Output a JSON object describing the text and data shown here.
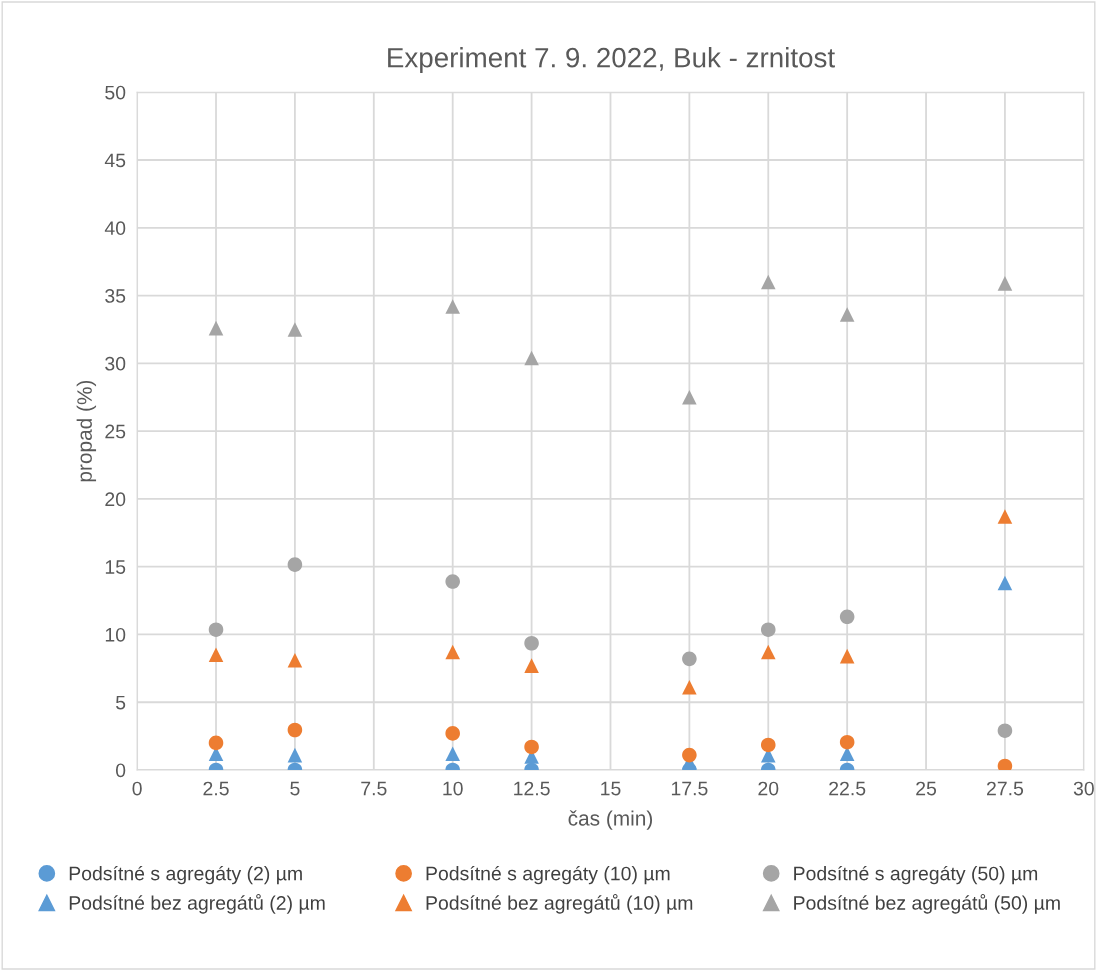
{
  "chart_data": {
    "type": "scatter",
    "title": "Experiment 7. 9. 2022, Buk - zrnitost",
    "xlabel": "čas (min)",
    "ylabel": "propad (%)",
    "x": [
      2.5,
      5,
      10,
      12.5,
      17.5,
      20,
      22.5,
      27.5
    ],
    "series": [
      {
        "name": "Podsítné s agregáty (2) µm",
        "color": "#5b9bd5",
        "marker": "circle",
        "values": [
          0,
          0,
          0,
          0,
          0,
          0,
          0,
          null
        ]
      },
      {
        "name": "Podsítné bez agregátů (2) µm",
        "color": "#5b9bd5",
        "marker": "triangle",
        "values": [
          1.2,
          1.1,
          1.2,
          1.0,
          0.6,
          1.1,
          1.2,
          13.8
        ]
      },
      {
        "name": "Podsítné s agregáty (10) µm",
        "color": "#ed7d31",
        "marker": "circle",
        "values": [
          2.0,
          2.95,
          2.7,
          1.7,
          1.1,
          1.85,
          2.05,
          0.3
        ]
      },
      {
        "name": "Podsítné bez agregátů (10) µm",
        "color": "#ed7d31",
        "marker": "triangle",
        "values": [
          8.5,
          8.1,
          8.7,
          7.7,
          6.1,
          8.7,
          8.4,
          18.7
        ]
      },
      {
        "name": "Podsítné s agregáty (50) µm",
        "color": "#a5a5a5",
        "marker": "circle",
        "values": [
          10.35,
          15.15,
          13.9,
          9.35,
          8.2,
          10.35,
          11.3,
          2.9
        ]
      },
      {
        "name": "Podsítné bez agregátů (50) µm",
        "color": "#a5a5a5",
        "marker": "triangle",
        "values": [
          32.6,
          32.5,
          34.2,
          30.4,
          27.5,
          36.0,
          33.6,
          35.9
        ]
      }
    ],
    "xlim": [
      0,
      30
    ],
    "xticks": [
      0,
      2.5,
      5,
      7.5,
      10,
      12.5,
      15,
      17.5,
      20,
      22.5,
      25,
      27.5,
      30
    ],
    "ylim": [
      0,
      50
    ],
    "yticks": [
      0,
      5,
      10,
      15,
      20,
      25,
      30,
      35,
      40,
      45,
      50
    ],
    "grid": true,
    "legend": "bottom"
  }
}
